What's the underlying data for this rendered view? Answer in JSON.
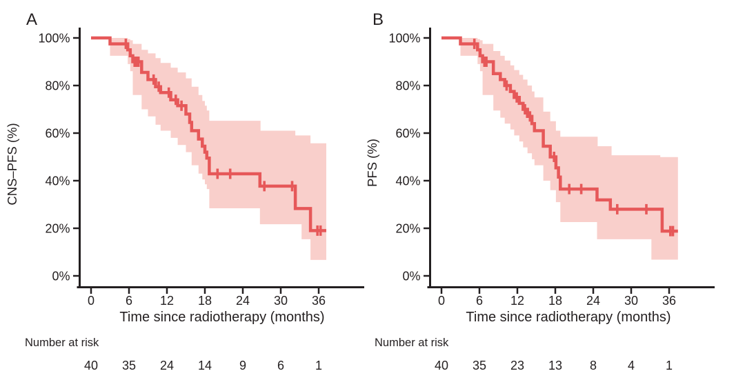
{
  "figure": {
    "background": "#ffffff",
    "text_color": "#231f20",
    "line_color": "#e65859",
    "band_color": "#f9cfcb"
  },
  "chart_data": [
    {
      "type": "line",
      "subtype": "kaplan-meier-step",
      "panel_label": "A",
      "ylabel": "CNS–PFS (%)",
      "xlabel": "Time since radiotherapy (months)",
      "xlim": [
        0,
        43
      ],
      "ylim": [
        0,
        100
      ],
      "grid": false,
      "legend": "none",
      "xticks": [
        0,
        6,
        12,
        18,
        24,
        30,
        36
      ],
      "yticks": [
        {
          "value": 100,
          "label": "100%"
        },
        {
          "value": 80,
          "label": "80%"
        },
        {
          "value": 60,
          "label": "60%"
        },
        {
          "value": 40,
          "label": "40%"
        },
        {
          "value": 20,
          "label": "20%"
        },
        {
          "value": 0,
          "label": "0%"
        }
      ],
      "end_time": 37.2,
      "steps": [
        [
          0,
          100
        ],
        [
          3,
          97.5
        ],
        [
          5.8,
          95
        ],
        [
          6.2,
          92.5
        ],
        [
          6.6,
          90
        ],
        [
          8,
          85.5
        ],
        [
          9,
          82.5
        ],
        [
          10.2,
          79.5
        ],
        [
          11,
          77
        ],
        [
          12.6,
          74
        ],
        [
          13.7,
          71.5
        ],
        [
          15,
          68
        ],
        [
          15.6,
          64.5
        ],
        [
          15.9,
          61
        ],
        [
          17,
          57.5
        ],
        [
          17.6,
          54.5
        ],
        [
          18,
          52
        ],
        [
          18.3,
          49.5
        ],
        [
          18.7,
          42.9
        ],
        [
          26.7,
          37.7
        ],
        [
          32.3,
          28.3
        ],
        [
          34.7,
          19
        ]
      ],
      "band_upper": [
        [
          3,
          100
        ],
        [
          5.8,
          99.5
        ],
        [
          6.2,
          99
        ],
        [
          6.6,
          97.5
        ],
        [
          8,
          95
        ],
        [
          9,
          93.5
        ],
        [
          10.2,
          91.5
        ],
        [
          11,
          89.5
        ],
        [
          12.6,
          87.5
        ],
        [
          13.7,
          85.5
        ],
        [
          15,
          83
        ],
        [
          15.9,
          79.5
        ],
        [
          17,
          76
        ],
        [
          17.6,
          73.5
        ],
        [
          18,
          71.5
        ],
        [
          18.3,
          69.5
        ],
        [
          18.7,
          65.2
        ],
        [
          26.8,
          61
        ],
        [
          32.3,
          59
        ],
        [
          34.7,
          55.7
        ]
      ],
      "band_lower": [
        [
          3,
          92.5
        ],
        [
          5.8,
          89
        ],
        [
          6.2,
          86
        ],
        [
          6.6,
          76
        ],
        [
          8,
          70
        ],
        [
          9,
          67
        ],
        [
          10.2,
          63.5
        ],
        [
          11,
          61
        ],
        [
          12.6,
          58
        ],
        [
          13.7,
          55
        ],
        [
          15,
          52
        ],
        [
          15.9,
          46.5
        ],
        [
          17,
          43
        ],
        [
          17.6,
          40.5
        ],
        [
          18,
          38.5
        ],
        [
          18.3,
          36.5
        ],
        [
          18.7,
          28.4
        ],
        [
          26.7,
          21.7
        ],
        [
          33.3,
          15.4
        ],
        [
          34.7,
          6.7
        ]
      ],
      "censors": [
        [
          5.5,
          97.5
        ],
        [
          6.9,
          90
        ],
        [
          7.2,
          90
        ],
        [
          7.5,
          90
        ],
        [
          9.9,
          82.5
        ],
        [
          10.7,
          79.5
        ],
        [
          12.3,
          77
        ],
        [
          13.4,
          74
        ],
        [
          14.3,
          71.5
        ],
        [
          20,
          42.9
        ],
        [
          22,
          42.9
        ],
        [
          27.4,
          37.7
        ],
        [
          31.8,
          37.7
        ],
        [
          35.8,
          19
        ],
        [
          36.3,
          19
        ]
      ],
      "number_at_risk": {
        "label": "Number at risk",
        "times": [
          0,
          6,
          12,
          18,
          24,
          30,
          36
        ],
        "values": [
          40,
          35,
          24,
          14,
          9,
          6,
          1
        ]
      }
    },
    {
      "type": "line",
      "subtype": "kaplan-meier-step",
      "panel_label": "B",
      "ylabel": "PFS (%)",
      "xlabel": "Time since radiotherapy (months)",
      "xlim": [
        0,
        43
      ],
      "ylim": [
        0,
        100
      ],
      "grid": false,
      "legend": "none",
      "xticks": [
        0,
        6,
        12,
        18,
        24,
        30,
        36
      ],
      "yticks": [
        {
          "value": 100,
          "label": "100%"
        },
        {
          "value": 80,
          "label": "80%"
        },
        {
          "value": 60,
          "label": "60%"
        },
        {
          "value": 40,
          "label": "40%"
        },
        {
          "value": 20,
          "label": "20%"
        },
        {
          "value": 0,
          "label": "0%"
        }
      ],
      "end_time": 37.4,
      "steps": [
        [
          0,
          100
        ],
        [
          3,
          97.5
        ],
        [
          5.7,
          95
        ],
        [
          6.1,
          92.5
        ],
        [
          6.5,
          90
        ],
        [
          8.2,
          85
        ],
        [
          9.3,
          82.5
        ],
        [
          10,
          80
        ],
        [
          10.9,
          77.5
        ],
        [
          11.5,
          75
        ],
        [
          12.3,
          72.5
        ],
        [
          12.9,
          70
        ],
        [
          13.6,
          67
        ],
        [
          14.3,
          64
        ],
        [
          14.7,
          61
        ],
        [
          16.1,
          54.5
        ],
        [
          17.2,
          50
        ],
        [
          18.1,
          45.4
        ],
        [
          18.5,
          41.5
        ],
        [
          18.8,
          36.5
        ],
        [
          24.6,
          31.9
        ],
        [
          26.7,
          28
        ],
        [
          34.9,
          18.8
        ]
      ],
      "band_upper": [
        [
          3,
          100
        ],
        [
          5.7,
          99.5
        ],
        [
          6.1,
          99
        ],
        [
          6.5,
          97.5
        ],
        [
          8.2,
          94.5
        ],
        [
          9.3,
          92.5
        ],
        [
          10,
          90.5
        ],
        [
          10.9,
          88.5
        ],
        [
          11.5,
          86.5
        ],
        [
          12.3,
          84.5
        ],
        [
          12.9,
          82.5
        ],
        [
          13.6,
          80
        ],
        [
          14.3,
          77.5
        ],
        [
          14.7,
          75
        ],
        [
          16.1,
          69
        ],
        [
          17.2,
          65
        ],
        [
          18.1,
          61
        ],
        [
          18.8,
          58.5
        ],
        [
          24.7,
          54.5
        ],
        [
          26.9,
          50.7
        ],
        [
          34.6,
          49.9
        ]
      ],
      "band_lower": [
        [
          3,
          92.5
        ],
        [
          5.7,
          89
        ],
        [
          6.1,
          86
        ],
        [
          6.5,
          76
        ],
        [
          8.2,
          69.5
        ],
        [
          9.3,
          66.5
        ],
        [
          10,
          64
        ],
        [
          10.9,
          61.5
        ],
        [
          11.5,
          59
        ],
        [
          12.3,
          56.5
        ],
        [
          12.9,
          54
        ],
        [
          13.6,
          51.5
        ],
        [
          14.3,
          49
        ],
        [
          14.7,
          46.5
        ],
        [
          16.1,
          40
        ],
        [
          17.2,
          36
        ],
        [
          18.1,
          31
        ],
        [
          18.8,
          22.6
        ],
        [
          24.6,
          15.4
        ],
        [
          33.2,
          6.8
        ]
      ],
      "censors": [
        [
          5.2,
          97.5
        ],
        [
          6.8,
          90
        ],
        [
          7.1,
          90
        ],
        [
          10.3,
          80
        ],
        [
          11.9,
          75
        ],
        [
          13.2,
          70
        ],
        [
          14,
          67
        ],
        [
          17.8,
          50
        ],
        [
          20.2,
          36.5
        ],
        [
          22.1,
          36.5
        ],
        [
          27.8,
          28
        ],
        [
          32.4,
          28
        ],
        [
          36.2,
          18.8
        ],
        [
          36.6,
          18.8
        ]
      ],
      "number_at_risk": {
        "label": "Number at risk",
        "times": [
          0,
          6,
          12,
          18,
          24,
          30,
          36
        ],
        "values": [
          40,
          35,
          23,
          13,
          8,
          4,
          1
        ]
      }
    }
  ]
}
